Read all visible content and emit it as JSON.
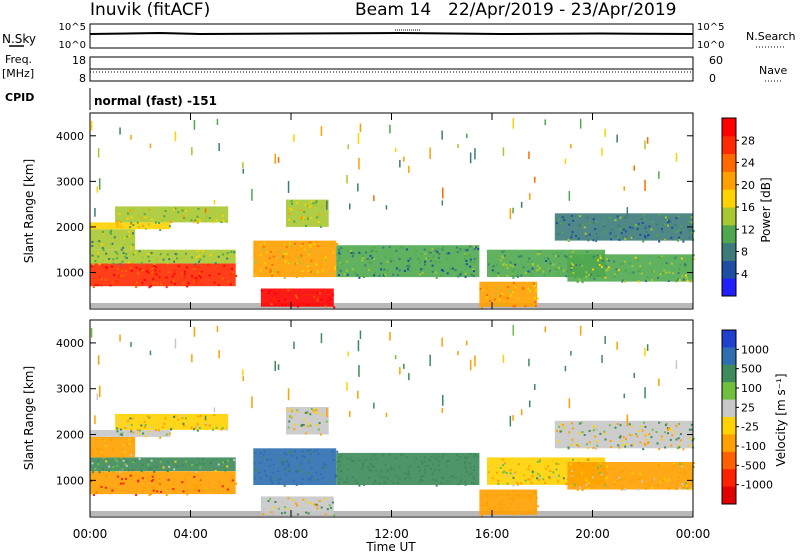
{
  "header": {
    "station": "Inuvik (fitACF)",
    "beam": "Beam 14",
    "date_range": "22/Apr/2019 - 23/Apr/2019"
  },
  "strips": {
    "nsky": {
      "label": "N.Sky",
      "ticks": [
        "10^5",
        "10^0"
      ],
      "right_ticks": [
        "10^5",
        "10^0"
      ],
      "right_label": "N.Search"
    },
    "freq": {
      "label_line1": "Freq.",
      "label_line2": "[MHz]",
      "ticks": [
        "18",
        "8"
      ],
      "right_ticks": [
        "60",
        "0"
      ],
      "right_label": "Nave"
    },
    "cpid": {
      "label": "CPID",
      "value": "normal (fast) -151"
    }
  },
  "colors": {
    "power": [
      "#1f1fff",
      "#1c4fa0",
      "#3d7a7a",
      "#4fa84f",
      "#a8c830",
      "#ffd200",
      "#ffa000",
      "#ff6a00",
      "#ff2a00",
      "#ff0000"
    ],
    "velocity": [
      "#1f3fcf",
      "#2e6eb0",
      "#3d8a5a",
      "#70c040",
      "#c8c8c8",
      "#ffd200",
      "#ffa000",
      "#ff6000",
      "#ff2000",
      "#e00000"
    ],
    "ground": "#808080"
  },
  "chart_data": [
    {
      "type": "heatmap",
      "name": "power",
      "ylabel": "Slant Range [km]",
      "y_ticks": [
        "1000",
        "2000",
        "3000",
        "4000"
      ],
      "ylim": [
        200,
        4500
      ],
      "colorbar_label": "Power [dB]",
      "colorbar_ticks": [
        "4",
        "8",
        "12",
        "16",
        "20",
        "24",
        "28"
      ],
      "series": [
        {
          "t0": 0.0,
          "t1": 5.8,
          "r0": 700,
          "r1": 1200,
          "v": 26
        },
        {
          "t0": 0.0,
          "t1": 5.8,
          "r0": 1200,
          "r1": 1500,
          "v": 12
        },
        {
          "t0": 0.0,
          "t1": 1.8,
          "r0": 1500,
          "r1": 1950,
          "v": 12
        },
        {
          "t0": 0.0,
          "t1": 3.2,
          "r0": 1950,
          "r1": 2100,
          "v": 15
        },
        {
          "t0": 1.0,
          "t1": 5.5,
          "r0": 2100,
          "r1": 2450,
          "v": 14
        },
        {
          "t0": 6.8,
          "t1": 9.7,
          "r0": 250,
          "r1": 650,
          "v": 27
        },
        {
          "t0": 6.5,
          "t1": 9.8,
          "r0": 900,
          "r1": 1700,
          "v": 18
        },
        {
          "t0": 7.8,
          "t1": 9.5,
          "r0": 2000,
          "r1": 2600,
          "v": 14
        },
        {
          "t0": 9.8,
          "t1": 15.5,
          "r0": 900,
          "r1": 1600,
          "v": 9
        },
        {
          "t0": 15.5,
          "t1": 17.8,
          "r0": 250,
          "r1": 800,
          "v": 19
        },
        {
          "t0": 15.8,
          "t1": 20.5,
          "r0": 900,
          "r1": 1500,
          "v": 10
        },
        {
          "t0": 18.5,
          "t1": 24.0,
          "r0": 1700,
          "r1": 2300,
          "v": 8
        },
        {
          "t0": 19.0,
          "t1": 24.0,
          "r0": 800,
          "r1": 1400,
          "v": 11
        }
      ]
    },
    {
      "type": "heatmap",
      "name": "velocity",
      "xlabel": "Time UT",
      "ylabel": "Slant Range [km]",
      "x_ticks": [
        "00:00",
        "04:00",
        "08:00",
        "12:00",
        "16:00",
        "20:00",
        "00:00"
      ],
      "xlim": [
        0,
        24
      ],
      "y_ticks": [
        "1000",
        "2000",
        "3000",
        "4000"
      ],
      "ylim": [
        200,
        4500
      ],
      "colorbar_label": "Velocity [m s⁻¹]",
      "colorbar_ticks": [
        "1000",
        "500",
        "100",
        "25",
        "-25",
        "-100",
        "-500",
        "-1000"
      ],
      "series": [
        {
          "t0": 0.0,
          "t1": 5.8,
          "r0": 700,
          "r1": 1200,
          "v": -400
        },
        {
          "t0": 0.0,
          "t1": 5.8,
          "r0": 1200,
          "r1": 1500,
          "v": 150
        },
        {
          "t0": 0.0,
          "t1": 1.8,
          "r0": 1500,
          "r1": 1950,
          "v": -200
        },
        {
          "t0": 0.0,
          "t1": 3.2,
          "r0": 1950,
          "r1": 2100,
          "v": 0
        },
        {
          "t0": 1.0,
          "t1": 5.5,
          "r0": 2100,
          "r1": 2450,
          "v": -50
        },
        {
          "t0": 6.8,
          "t1": 9.7,
          "r0": 250,
          "r1": 650,
          "v": 0
        },
        {
          "t0": 6.5,
          "t1": 9.8,
          "r0": 900,
          "r1": 1700,
          "v": 600
        },
        {
          "t0": 7.8,
          "t1": 9.5,
          "r0": 2000,
          "r1": 2600,
          "v": 0
        },
        {
          "t0": 9.8,
          "t1": 15.5,
          "r0": 900,
          "r1": 1600,
          "v": 300
        },
        {
          "t0": 15.5,
          "t1": 17.8,
          "r0": 250,
          "r1": 800,
          "v": -300
        },
        {
          "t0": 15.8,
          "t1": 20.5,
          "r0": 900,
          "r1": 1500,
          "v": -80
        },
        {
          "t0": 18.5,
          "t1": 24.0,
          "r0": 1700,
          "r1": 2300,
          "v": 0
        },
        {
          "t0": 19.0,
          "t1": 24.0,
          "r0": 800,
          "r1": 1400,
          "v": -150
        }
      ]
    }
  ]
}
